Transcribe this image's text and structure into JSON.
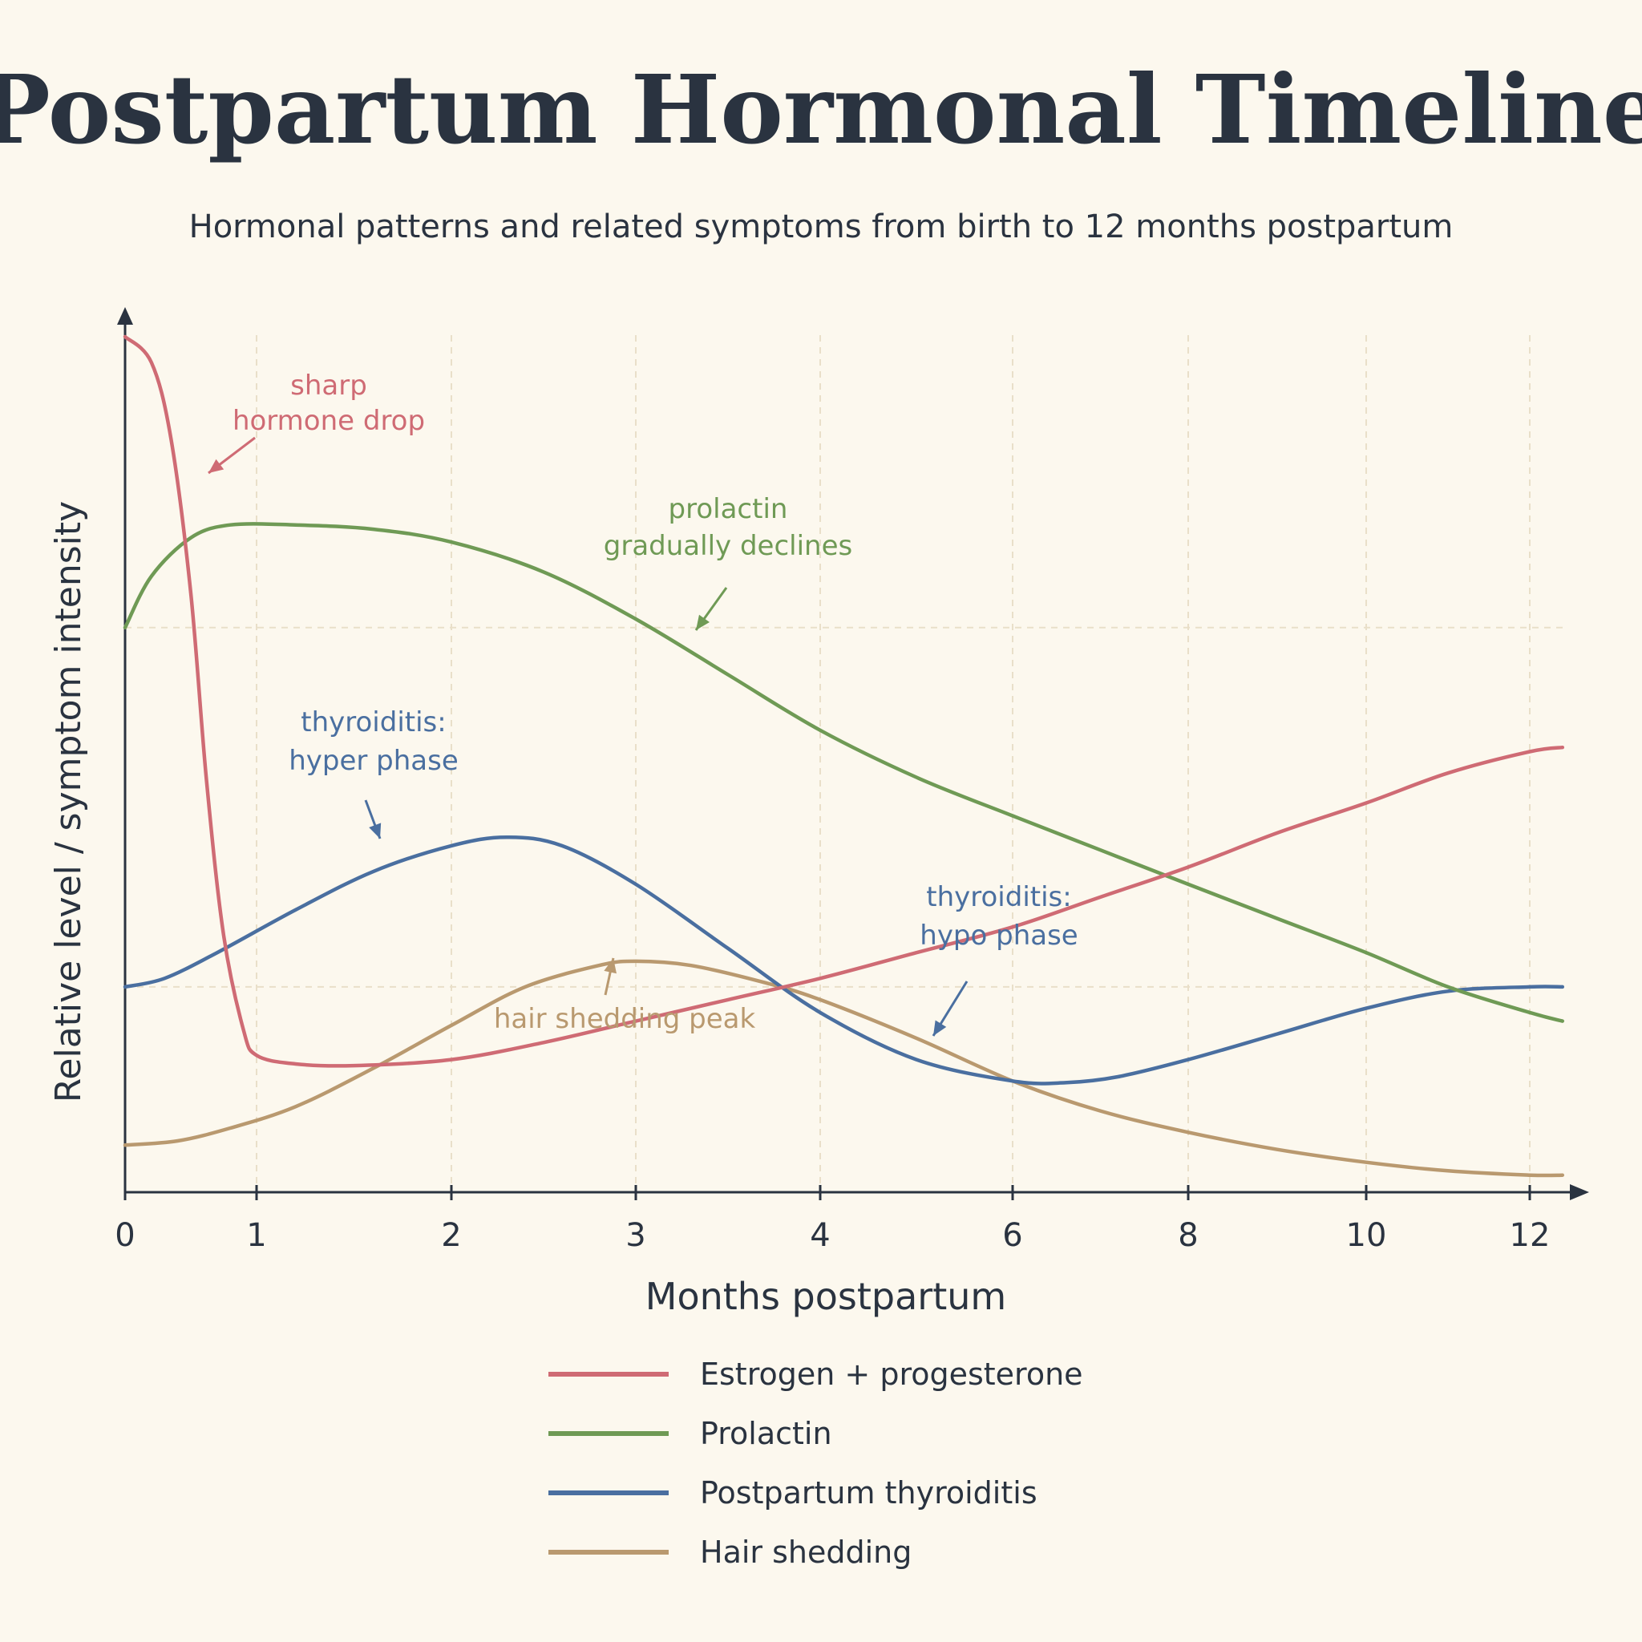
{
  "chart_data": {
    "type": "line",
    "title": "Postpartum Hormonal Timeline",
    "subtitle": "Hormonal patterns and related symptoms from birth to 12 months postpartum",
    "xlabel": "Months postpartum",
    "ylabel": "Relative level / symptom intensity",
    "x_ticks": [
      {
        "pos": 0,
        "label": "0"
      },
      {
        "pos": 1,
        "label": "1"
      },
      {
        "pos": 2,
        "label": "2"
      },
      {
        "pos": 3,
        "label": "3"
      },
      {
        "pos": 4,
        "label": "4"
      },
      {
        "pos": 5,
        "label": "6"
      },
      {
        "pos": 6,
        "label": "8"
      },
      {
        "pos": 7,
        "label": "10"
      },
      {
        "pos": 8,
        "label": "12"
      }
    ],
    "x_scale": "non-uniform (ordinal tick spacing)",
    "ylim": [
      0,
      100
    ],
    "grid": "dashed",
    "legend_position": "bottom",
    "series": [
      {
        "name": "Estrogen + progesterone",
        "color": "#cf6b74",
        "points": [
          [
            0,
            100
          ],
          [
            0.2,
            97
          ],
          [
            0.35,
            88
          ],
          [
            0.5,
            70
          ],
          [
            0.62,
            48
          ],
          [
            0.75,
            30
          ],
          [
            0.9,
            19
          ],
          [
            1.0,
            16
          ],
          [
            1.2,
            15
          ],
          [
            1.5,
            14.8
          ],
          [
            2.0,
            15.5
          ],
          [
            2.5,
            17.5
          ],
          [
            3.0,
            20
          ],
          [
            3.5,
            22.5
          ],
          [
            4.0,
            25
          ],
          [
            4.5,
            28
          ],
          [
            5.0,
            31
          ],
          [
            5.5,
            34.5
          ],
          [
            6.0,
            38
          ],
          [
            6.5,
            42
          ],
          [
            7.0,
            45.5
          ],
          [
            7.5,
            49
          ],
          [
            8.0,
            51.5
          ],
          [
            8.2,
            52
          ]
        ]
      },
      {
        "name": "Prolactin",
        "color": "#6f9a55",
        "points": [
          [
            0,
            66
          ],
          [
            0.2,
            72
          ],
          [
            0.5,
            76.5
          ],
          [
            0.8,
            78
          ],
          [
            1.2,
            78
          ],
          [
            1.6,
            77.5
          ],
          [
            2.0,
            76
          ],
          [
            2.5,
            72.5
          ],
          [
            3.0,
            67
          ],
          [
            3.5,
            60.5
          ],
          [
            4.0,
            54
          ],
          [
            4.5,
            48.5
          ],
          [
            5.0,
            44
          ],
          [
            5.5,
            40
          ],
          [
            6.0,
            36
          ],
          [
            6.5,
            32
          ],
          [
            7.0,
            28
          ],
          [
            7.5,
            24
          ],
          [
            8.0,
            21
          ],
          [
            8.2,
            20
          ]
        ]
      },
      {
        "name": "Postpartum thyroiditis",
        "color": "#4a6fa0",
        "points": [
          [
            0,
            24
          ],
          [
            0.3,
            25
          ],
          [
            0.7,
            28
          ],
          [
            1.2,
            33
          ],
          [
            1.6,
            37.5
          ],
          [
            2.0,
            40.5
          ],
          [
            2.3,
            41.5
          ],
          [
            2.6,
            40.5
          ],
          [
            3.0,
            36
          ],
          [
            3.5,
            28.5
          ],
          [
            4.0,
            21
          ],
          [
            4.5,
            15.5
          ],
          [
            5.0,
            13
          ],
          [
            5.3,
            12.8
          ],
          [
            5.6,
            13.5
          ],
          [
            6.0,
            15.5
          ],
          [
            6.5,
            18.5
          ],
          [
            7.0,
            21.5
          ],
          [
            7.5,
            23.5
          ],
          [
            8.0,
            24
          ],
          [
            8.2,
            24
          ]
        ]
      },
      {
        "name": "Hair shedding",
        "color": "#b9996f",
        "points": [
          [
            0,
            5.5
          ],
          [
            0.4,
            6
          ],
          [
            0.8,
            7.5
          ],
          [
            1.2,
            10
          ],
          [
            1.6,
            14.5
          ],
          [
            2.0,
            19.5
          ],
          [
            2.4,
            24
          ],
          [
            2.8,
            26.5
          ],
          [
            3.0,
            27
          ],
          [
            3.3,
            26.5
          ],
          [
            3.7,
            24.5
          ],
          [
            4.0,
            22.5
          ],
          [
            4.5,
            18
          ],
          [
            5.0,
            13
          ],
          [
            5.5,
            9.5
          ],
          [
            6.0,
            7
          ],
          [
            6.5,
            5
          ],
          [
            7.0,
            3.5
          ],
          [
            7.5,
            2.5
          ],
          [
            8.0,
            2
          ],
          [
            8.2,
            2
          ]
        ]
      }
    ],
    "annotations": [
      {
        "lines": [
          "sharp",
          "hormone drop"
        ],
        "color": "#cf6b74"
      },
      {
        "lines": [
          "prolactin",
          "gradually declines"
        ],
        "color": "#6f9a55"
      },
      {
        "lines": [
          "thyroiditis:",
          "hyper phase"
        ],
        "color": "#4a6fa0"
      },
      {
        "lines": [
          "thyroiditis:",
          "hypo phase"
        ],
        "color": "#4a6fa0"
      },
      {
        "lines": [
          "hair shedding peak"
        ],
        "color": "#b9996f"
      }
    ]
  }
}
